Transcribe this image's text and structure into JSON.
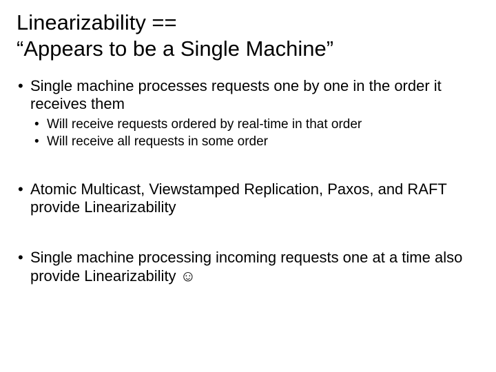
{
  "title_line1": "Linearizability ==",
  "title_line2": "“Appears to be a Single Machine”",
  "bullets": {
    "b1": "Single machine processes requests one by one in the order it receives them",
    "b1a": "Will receive requests ordered by real-time in that order",
    "b1b": "Will receive all requests in some order",
    "b2": "Atomic Multicast, Viewstamped Replication, Paxos, and RAFT provide Linearizability",
    "b3": "Single machine processing incoming requests one at a time also provide Linearizability ☺"
  },
  "style": {
    "title_fontsize": 31,
    "l1_fontsize": 22,
    "l2_fontsize": 19,
    "text_color": "#000000",
    "background_color": "#ffffff"
  }
}
